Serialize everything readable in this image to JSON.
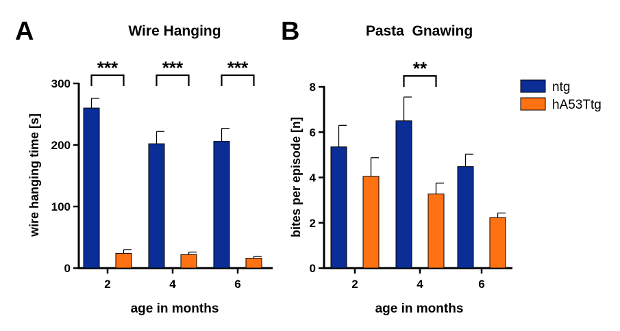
{
  "colors": {
    "ntg": "#0a2d96",
    "tg": "#ff7214",
    "axis": "#000000"
  },
  "legend": [
    {
      "label": "ntg",
      "color": "#0a2d96"
    },
    {
      "label": "hA53Ttg",
      "color": "#ff7214"
    }
  ],
  "chart_data": [
    {
      "panel": "A",
      "type": "bar",
      "title": "Wire Hanging",
      "xlabel": "age in months",
      "ylabel": "wire hanging time [s]",
      "categories": [
        "2",
        "4",
        "6"
      ],
      "ylim": [
        0,
        300
      ],
      "yticks": [
        0,
        100,
        200,
        300
      ],
      "series": [
        {
          "name": "ntg",
          "values": [
            260,
            202,
            206
          ],
          "errors": [
            16,
            20,
            21
          ]
        },
        {
          "name": "hA53Ttg",
          "values": [
            24,
            22,
            16
          ],
          "errors": [
            6,
            4,
            3
          ]
        }
      ],
      "significance": [
        {
          "category": "2",
          "label": "***"
        },
        {
          "category": "4",
          "label": "***"
        },
        {
          "category": "6",
          "label": "***"
        }
      ]
    },
    {
      "panel": "B",
      "type": "bar",
      "title": "Pasta  Gnawing",
      "xlabel": "age in months",
      "ylabel": "bites per episode [n]",
      "categories": [
        "2",
        "4",
        "6"
      ],
      "ylim": [
        0,
        8
      ],
      "yticks": [
        0,
        2,
        4,
        6,
        8
      ],
      "series": [
        {
          "name": "ntg",
          "values": [
            5.35,
            6.5,
            4.48
          ],
          "errors": [
            0.95,
            1.05,
            0.55
          ]
        },
        {
          "name": "hA53Ttg",
          "values": [
            4.05,
            3.27,
            2.23
          ],
          "errors": [
            0.82,
            0.48,
            0.2
          ]
        }
      ],
      "significance": [
        {
          "category": "4",
          "label": "**"
        }
      ]
    }
  ]
}
